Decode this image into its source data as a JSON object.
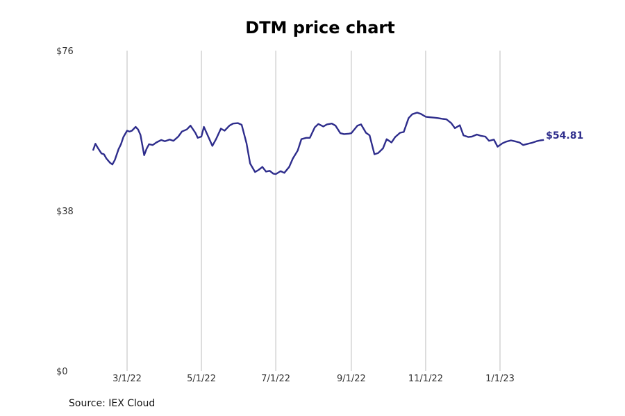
{
  "chart_data": {
    "type": "line",
    "title": "DTM price chart",
    "source": "Source: IEX Cloud",
    "ylim": [
      0,
      76
    ],
    "y_ticks": [
      {
        "value": 76,
        "label": "$76"
      },
      {
        "value": 38,
        "label": "$38"
      },
      {
        "value": 0,
        "label": "$0"
      }
    ],
    "x_ticks": [
      {
        "date": "2022-03-01",
        "label": "3/1/22"
      },
      {
        "date": "2022-05-01",
        "label": "5/1/22"
      },
      {
        "date": "2022-07-01",
        "label": "7/1/22"
      },
      {
        "date": "2022-09-01",
        "label": "9/1/22"
      },
      {
        "date": "2022-11-01",
        "label": "11/1/22"
      },
      {
        "date": "2023-01-01",
        "label": "1/1/23"
      }
    ],
    "xlim": [
      "2022-01-20",
      "2023-03-30"
    ],
    "grid": "vertical",
    "line_color": "#2e2d8c",
    "last_value_label": "$54.81",
    "series": [
      {
        "x": [
          "2022-02-01",
          "2022-02-03",
          "2022-02-05",
          "2022-02-08",
          "2022-02-10",
          "2022-02-12",
          "2022-02-15",
          "2022-02-17",
          "2022-02-19",
          "2022-02-22",
          "2022-02-24",
          "2022-02-26",
          "2022-03-01",
          "2022-03-03",
          "2022-03-05",
          "2022-03-08",
          "2022-03-10",
          "2022-03-12",
          "2022-03-15",
          "2022-03-17",
          "2022-03-19",
          "2022-03-22",
          "2022-03-25",
          "2022-03-29",
          "2022-04-01",
          "2022-04-05",
          "2022-04-08",
          "2022-04-12",
          "2022-04-15",
          "2022-04-19",
          "2022-04-22",
          "2022-04-26",
          "2022-04-28",
          "2022-05-01",
          "2022-05-03",
          "2022-05-06",
          "2022-05-10",
          "2022-05-13",
          "2022-05-17",
          "2022-05-20",
          "2022-05-24",
          "2022-05-27",
          "2022-05-31",
          "2022-06-03",
          "2022-06-07",
          "2022-06-10",
          "2022-06-14",
          "2022-06-17",
          "2022-06-20",
          "2022-06-23",
          "2022-06-26",
          "2022-06-29",
          "2022-07-01",
          "2022-07-05",
          "2022-07-08",
          "2022-07-12",
          "2022-07-15",
          "2022-07-19",
          "2022-07-22",
          "2022-07-26",
          "2022-07-29",
          "2022-08-02",
          "2022-08-05",
          "2022-08-09",
          "2022-08-12",
          "2022-08-16",
          "2022-08-19",
          "2022-08-23",
          "2022-08-26",
          "2022-08-30",
          "2022-09-01",
          "2022-09-06",
          "2022-09-09",
          "2022-09-13",
          "2022-09-16",
          "2022-09-20",
          "2022-09-23",
          "2022-09-27",
          "2022-09-30",
          "2022-10-04",
          "2022-10-07",
          "2022-10-11",
          "2022-10-14",
          "2022-10-18",
          "2022-10-21",
          "2022-10-25",
          "2022-10-28",
          "2022-11-01",
          "2022-11-04",
          "2022-11-08",
          "2022-11-11",
          "2022-11-15",
          "2022-11-18",
          "2022-11-22",
          "2022-11-25",
          "2022-11-29",
          "2022-12-02",
          "2022-12-06",
          "2022-12-09",
          "2022-12-13",
          "2022-12-16",
          "2022-12-20",
          "2022-12-23",
          "2022-12-27",
          "2022-12-30",
          "2023-01-03",
          "2023-01-06",
          "2023-01-10",
          "2023-01-13",
          "2023-01-17",
          "2023-01-20",
          "2023-01-24",
          "2023-01-27",
          "2023-01-31",
          "2023-02-03",
          "2023-02-06"
        ],
        "y": [
          52.3,
          53.9,
          52.9,
          51.6,
          51.4,
          50.4,
          49.4,
          49.0,
          50.1,
          52.6,
          53.8,
          55.5,
          57.0,
          56.8,
          57.0,
          57.9,
          57.3,
          56.0,
          51.2,
          52.7,
          53.8,
          53.6,
          54.2,
          54.8,
          54.5,
          54.9,
          54.6,
          55.6,
          56.8,
          57.3,
          58.2,
          56.5,
          55.3,
          55.6,
          57.9,
          56.0,
          53.4,
          55.0,
          57.5,
          57.0,
          58.2,
          58.7,
          58.8,
          58.4,
          54.0,
          49.2,
          47.2,
          47.7,
          48.4,
          47.3,
          47.5,
          46.8,
          46.7,
          47.4,
          47.0,
          48.4,
          50.4,
          52.3,
          55.0,
          55.3,
          55.3,
          57.8,
          58.6,
          58.0,
          58.5,
          58.7,
          58.2,
          56.4,
          56.2,
          56.3,
          56.4,
          58.2,
          58.5,
          56.5,
          55.9,
          51.4,
          51.7,
          52.8,
          55.0,
          54.2,
          55.5,
          56.5,
          56.7,
          60.0,
          60.9,
          61.3,
          61.0,
          60.3,
          60.2,
          60.1,
          60.0,
          59.8,
          59.7,
          58.8,
          57.6,
          58.3,
          55.9,
          55.5,
          55.6,
          56.1,
          55.8,
          55.6,
          54.6,
          54.9,
          53.2,
          54.0,
          54.4,
          54.7,
          54.5,
          54.2,
          53.6,
          53.9,
          54.1,
          54.5,
          54.7,
          54.81
        ]
      }
    ]
  }
}
